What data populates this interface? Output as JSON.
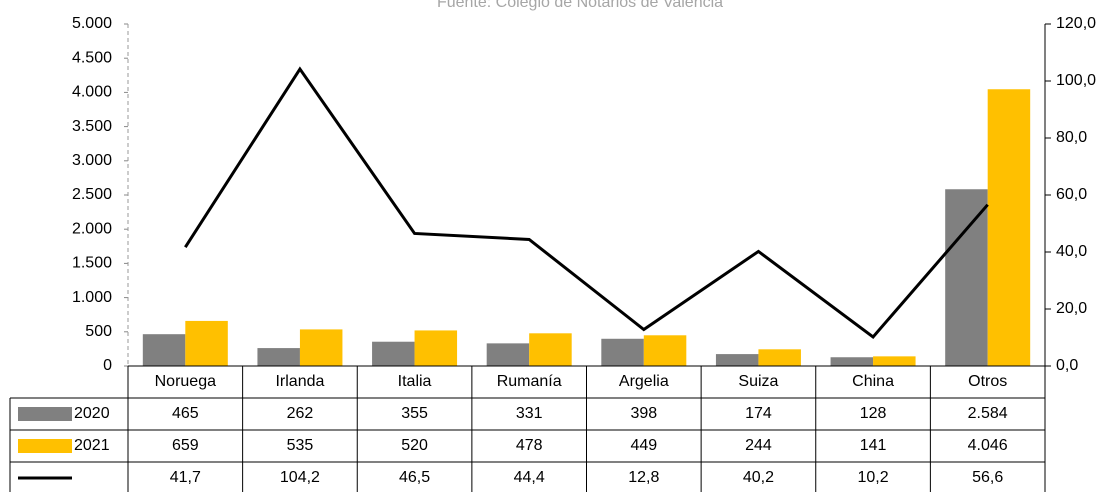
{
  "chart_data": {
    "type": "bar",
    "subtitle": "Fuente: Colegio de Notarios de Valencia",
    "categories": [
      "Noruega",
      "Irlanda",
      "Italia",
      "Rumanía",
      "Argelia",
      "Suiza",
      "China",
      "Otros"
    ],
    "series": [
      {
        "name": "2020",
        "color": "#808080",
        "values": [
          465,
          262,
          355,
          331,
          398,
          174,
          128,
          2584
        ],
        "value_labels": [
          "465",
          "262",
          "355",
          "331",
          "398",
          "174",
          "128",
          "2.584"
        ]
      },
      {
        "name": "2021",
        "color": "#ffc000",
        "values": [
          659,
          535,
          520,
          478,
          449,
          244,
          141,
          4046
        ],
        "value_labels": [
          "659",
          "535",
          "520",
          "478",
          "449",
          "244",
          "141",
          "4.046"
        ]
      },
      {
        "type": "line",
        "axis": "y2",
        "color": "#000000",
        "values": [
          41.7,
          104.2,
          46.5,
          44.4,
          12.8,
          40.2,
          10.2,
          56.6
        ],
        "value_labels": [
          "41,7",
          "104,2",
          "46,5",
          "44,4",
          "12,8",
          "40,2",
          "10,2",
          "56,6"
        ]
      }
    ],
    "ylim": [
      0,
      5000
    ],
    "yticks": [
      0,
      {
        "value": 500,
        "label": "500"
      },
      {
        "value": 1000,
        "label": "1.000"
      },
      {
        "value": 1500,
        "label": "1.500"
      },
      {
        "value": 2000,
        "label": "2.000"
      },
      {
        "value": 2500,
        "label": "2.500"
      },
      {
        "value": 3000,
        "label": "3.000"
      },
      {
        "value": 3500,
        "label": "3.500"
      },
      {
        "value": 4000,
        "label": "4.000"
      },
      {
        "value": 4500,
        "label": "4.500"
      },
      {
        "value": 5000,
        "label": "5.000"
      }
    ],
    "y2lim": [
      0,
      120
    ],
    "y2ticks": [
      {
        "value": 0,
        "label": "0,0"
      },
      {
        "value": 20,
        "label": "20,0"
      },
      {
        "value": 40,
        "label": "40,0"
      },
      {
        "value": 60,
        "label": "60,0"
      },
      {
        "value": 80,
        "label": "80,0"
      },
      {
        "value": 100,
        "label": "100,0"
      },
      {
        "value": 120,
        "label": "120,0"
      }
    ]
  }
}
